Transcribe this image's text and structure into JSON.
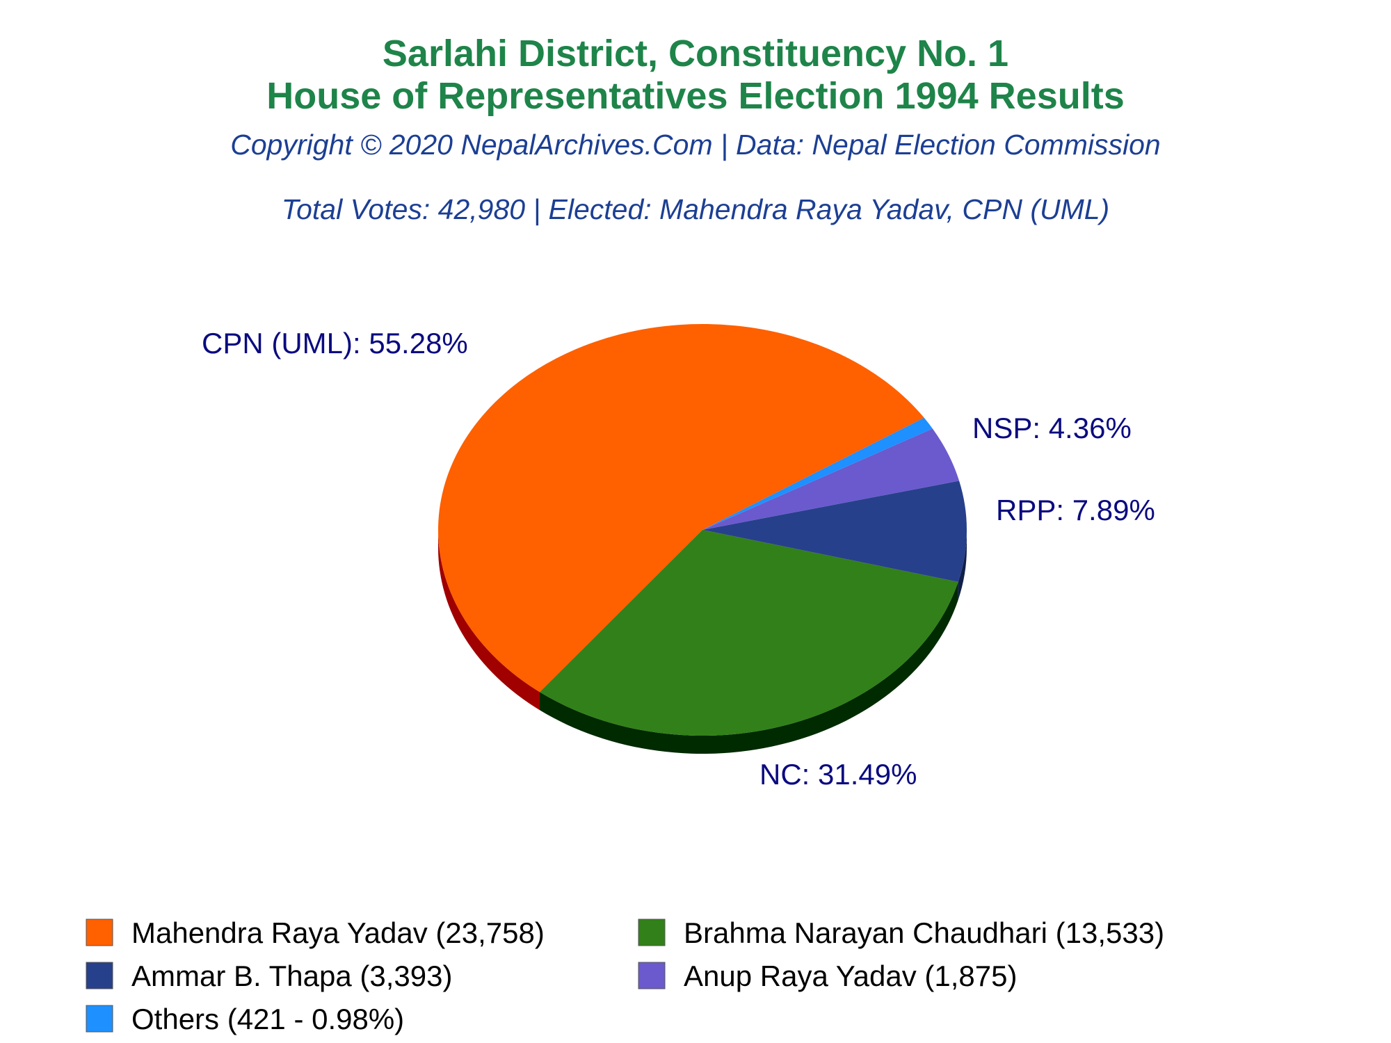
{
  "chart_data": {
    "type": "pie",
    "title": "Sarlahi District, Constituency No. 1",
    "title_line2": "House of Representatives Election 1994 Results",
    "subtitle": "Copyright © 2020 NepalArchives.Com | Data: Nepal Election Commission",
    "subtitle2": "Total Votes: 42,980 | Elected: Mahendra Raya Yadav, CPN (UML)",
    "slices": [
      {
        "label": "CPN (UML): 55.28%",
        "value": 23758,
        "color": "#ff6000",
        "side_color": "#a00000",
        "legend": "Mahendra Raya Yadav (23,758)"
      },
      {
        "label": "NC: 31.49%",
        "value": 13533,
        "color": "#328019",
        "side_color": "#002a00",
        "legend": "Brahma Narayan Chaudhari (13,533)"
      },
      {
        "label": "RPP: 7.89%",
        "value": 3393,
        "color": "#27408b",
        "side_color": "#10204a",
        "legend": "Ammar B. Thapa (3,393)"
      },
      {
        "label": "NSP: 4.36%",
        "value": 1875,
        "color": "#6a5acd",
        "side_color": "#3a2f80",
        "legend": "Anup Raya Yadav (1,875)"
      },
      {
        "label": "",
        "value": 421,
        "color": "#1e90ff",
        "side_color": "#104e8b",
        "legend": "Others (421 - 0.98%)"
      }
    ],
    "title_color": "#1e8449",
    "subtitle_color": "#1c3f94",
    "label_color": "#0a0a80",
    "legend_placement": "bottom"
  }
}
